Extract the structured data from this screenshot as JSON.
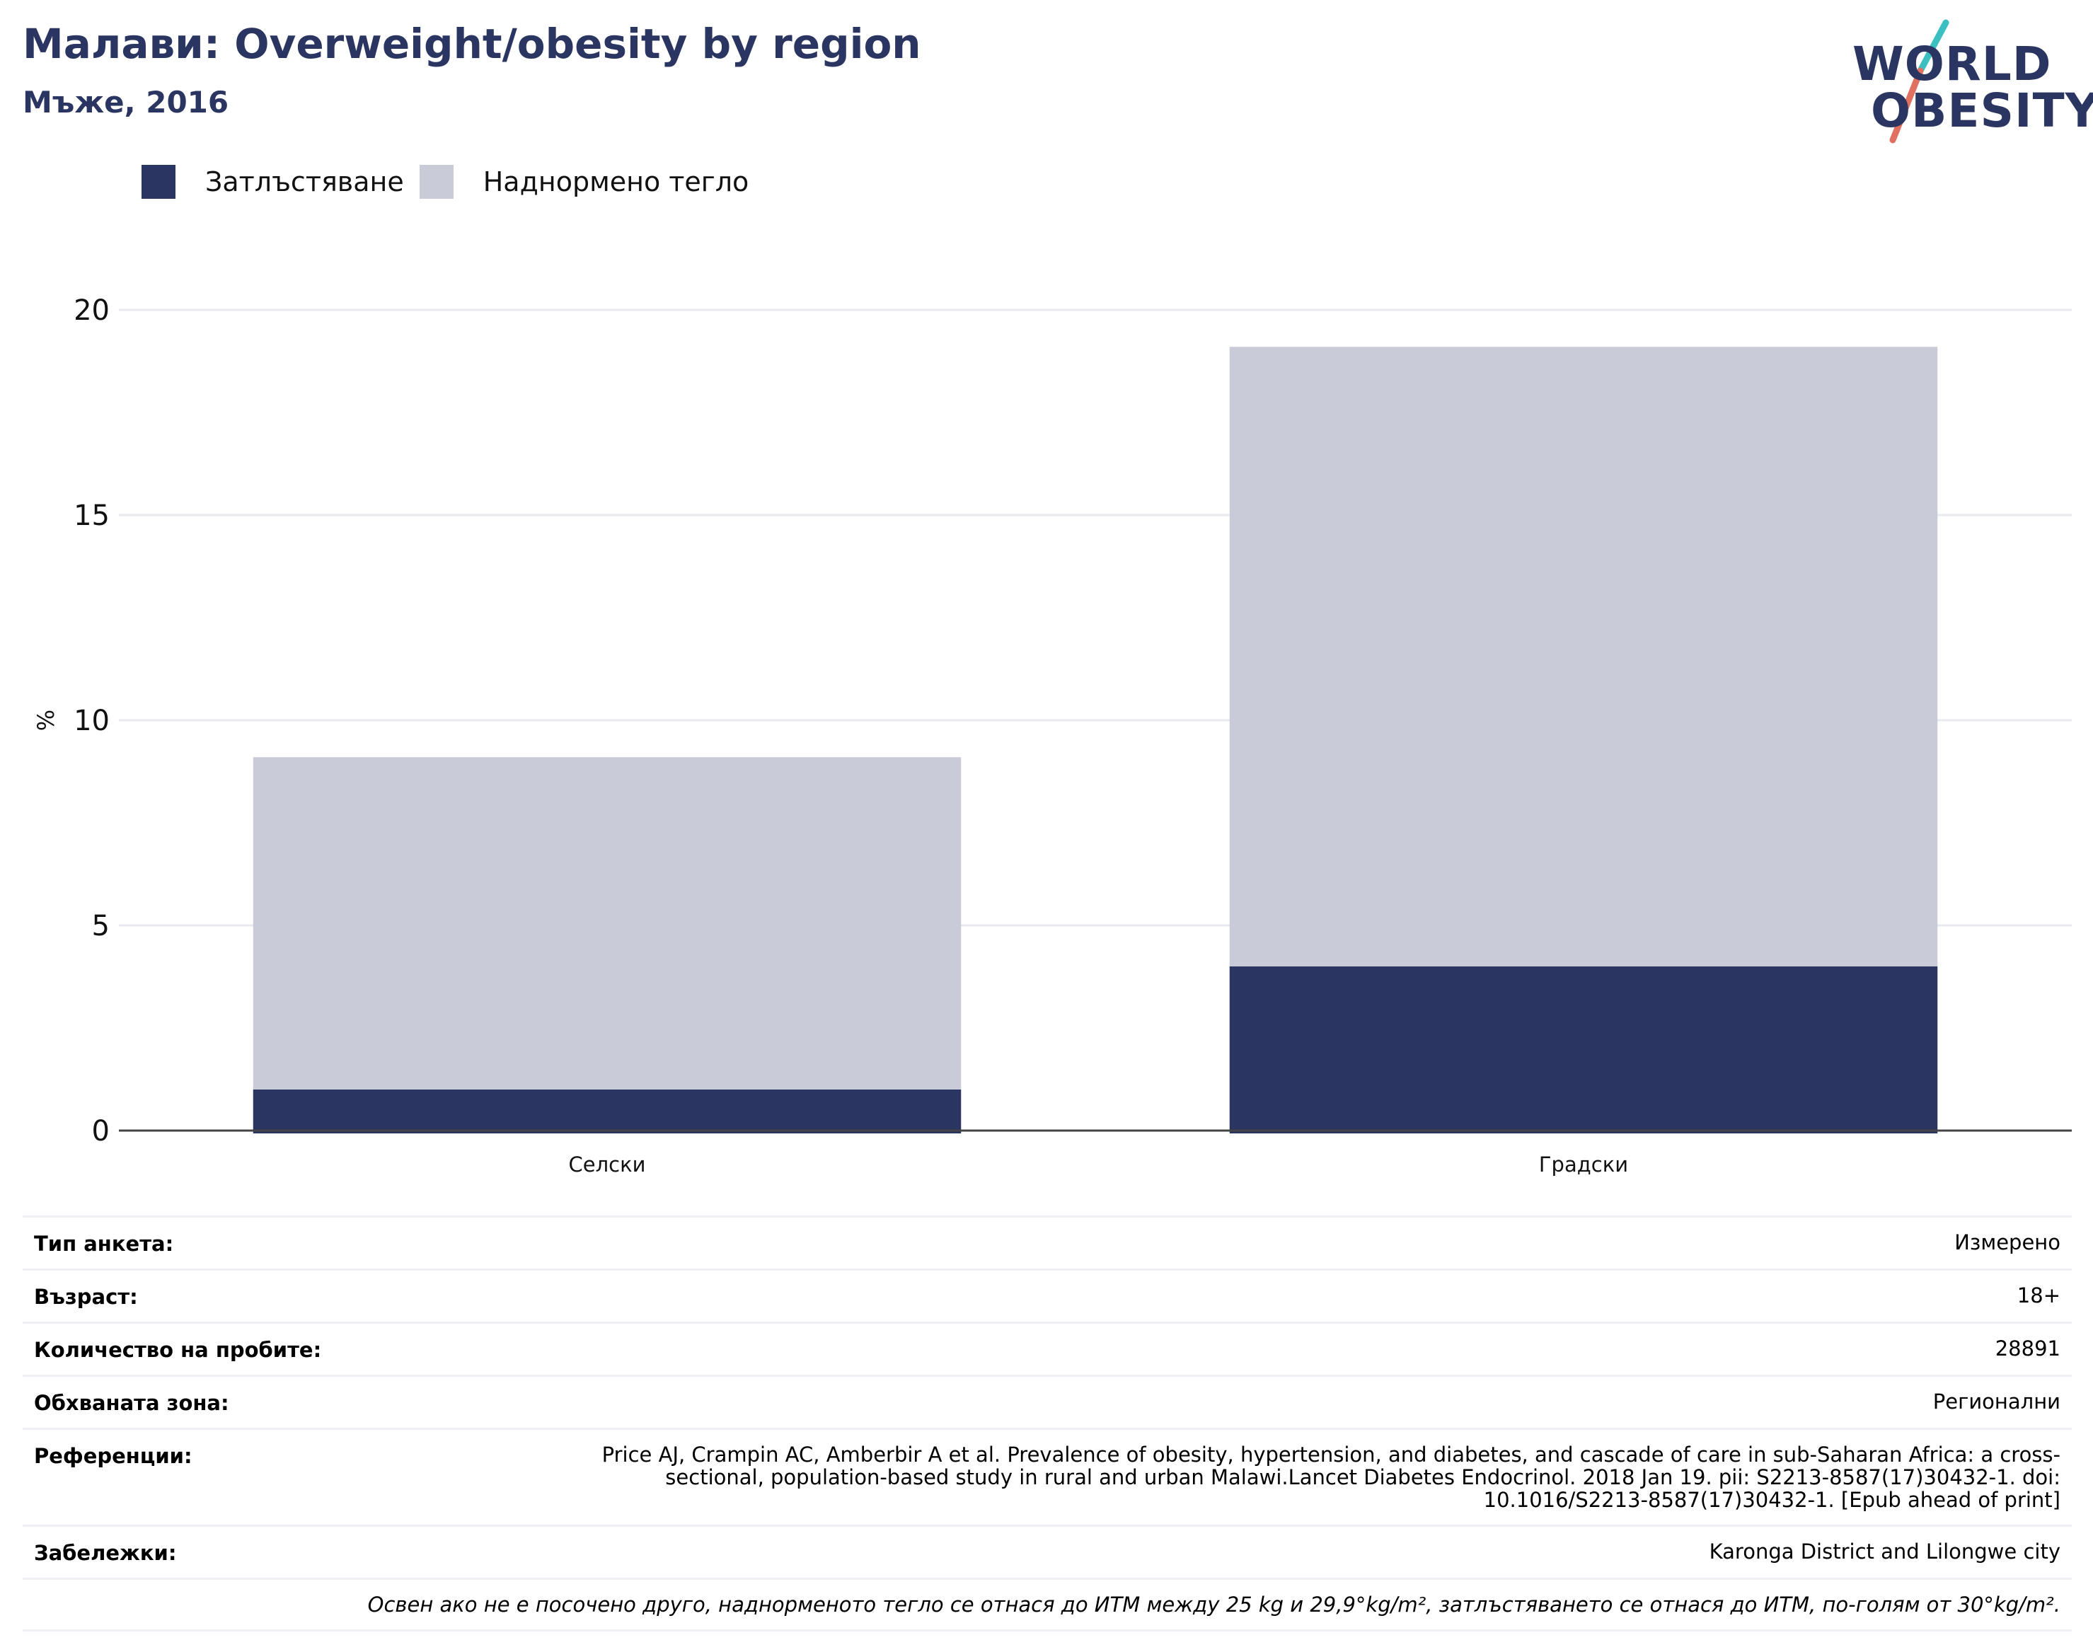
{
  "header": {
    "title": "Малави: Overweight/obesity by region",
    "subtitle": "Мъже, 2016"
  },
  "logo": {
    "line1": "WORLD",
    "line2": "OBESITY",
    "colors": {
      "navy": "#2a3562",
      "teal": "#3bbfc0",
      "coral": "#e0705f"
    }
  },
  "legend": [
    {
      "label": "Затлъстяване",
      "color": "#2a3562"
    },
    {
      "label": "Наднормено тегло",
      "color": "#c9ccd8"
    }
  ],
  "chart_data": {
    "type": "bar",
    "stacked": true,
    "categories": [
      "Селски",
      "Градски"
    ],
    "series": [
      {
        "name": "Затлъстяване",
        "values": [
          1.0,
          4.0
        ],
        "color": "#2a3562"
      },
      {
        "name": "Наднормено тегло",
        "values": [
          8.1,
          15.1
        ],
        "color": "#c9ccd8"
      }
    ],
    "ylabel": "%",
    "ylim": [
      0,
      20
    ],
    "yticks": [
      0,
      5,
      10,
      15,
      20
    ],
    "grid": true,
    "legend_position": "top-left"
  },
  "info": {
    "rows": [
      {
        "label": "Тип анкета:",
        "value": "Измерено"
      },
      {
        "label": "Възраст:",
        "value": "18+"
      },
      {
        "label": "Количество на пробите:",
        "value": "28891"
      },
      {
        "label": "Обхваната зона:",
        "value": "Регионални"
      },
      {
        "label": "Референции:",
        "value": "Price AJ, Crampin AC, Amberbir A et al. Prevalence of obesity, hypertension, and diabetes, and cascade of care in sub-Saharan Africa: a cross-sectional, population-based study in rural and urban Malawi.Lancet Diabetes Endocrinol. 2018 Jan 19. pii: S2213-8587(17)30432-1. doi: 10.1016/S2213-8587(17)30432-1. [Epub ahead of print]"
      },
      {
        "label": "Забележки:",
        "value": "Karonga District and Lilongwe city"
      }
    ],
    "footnote": "Освен ако не е посочено друго, наднорменото тегло се отнася до ИТМ между 25 kg и 29,9°kg/m², затлъстяването се отнася до ИТМ, по-голям от 30°kg/m²."
  }
}
